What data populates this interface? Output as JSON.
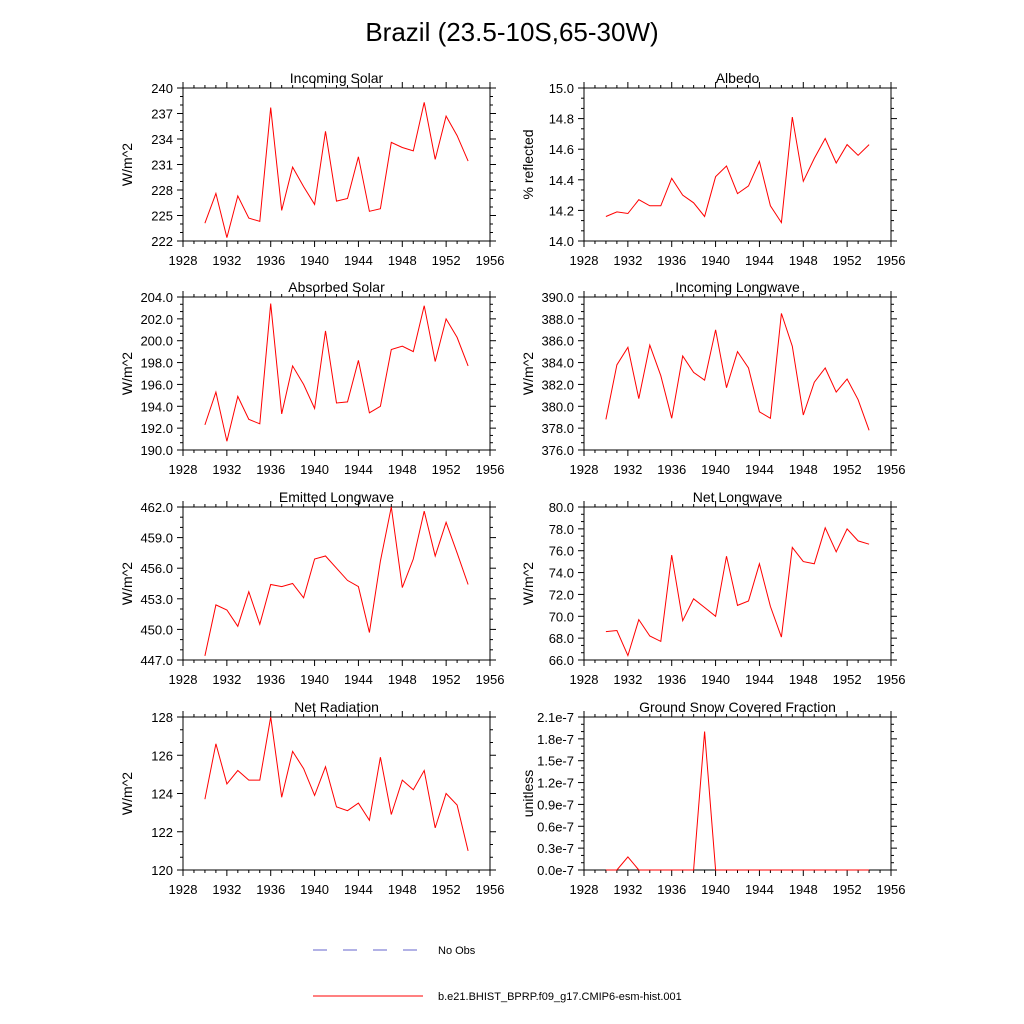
{
  "figure": {
    "title": "Brazil (23.5-10S,65-30W)",
    "legend": [
      {
        "label": "No Obs",
        "color": "#6666cc",
        "dashed": true
      },
      {
        "label": "b.e21.BHIST_BPRP.f09_g17.CMIP6-esm-hist.001",
        "color": "#ff0000",
        "dashed": false
      }
    ]
  },
  "chart_data": [
    {
      "type": "line",
      "title": "Incoming Solar",
      "ylabel": "W/m^2",
      "xlim": [
        1928,
        1956
      ],
      "ylim": [
        222,
        240
      ],
      "xticks": [
        "1928",
        "1932",
        "1936",
        "1940",
        "1944",
        "1948",
        "1952",
        "1956"
      ],
      "yticks": [
        "222",
        "225",
        "228",
        "231",
        "234",
        "237",
        "240"
      ],
      "x": [
        1930,
        1931,
        1932,
        1933,
        1934,
        1935,
        1936,
        1937,
        1938,
        1939,
        1940,
        1941,
        1942,
        1943,
        1944,
        1945,
        1946,
        1947,
        1948,
        1949,
        1950,
        1951,
        1952,
        1953,
        1954
      ],
      "values": [
        224.1,
        227.6,
        222.4,
        227.3,
        224.7,
        224.3,
        237.7,
        225.6,
        230.7,
        228.4,
        226.3,
        234.9,
        226.7,
        227.0,
        231.9,
        225.5,
        225.8,
        233.6,
        233.0,
        232.6,
        238.3,
        231.6,
        236.7,
        234.4,
        231.4
      ],
      "color": "#ff0000"
    },
    {
      "type": "line",
      "title": "Albedo",
      "ylabel": "% reflected",
      "xlim": [
        1928,
        1956
      ],
      "ylim": [
        14.0,
        15.0
      ],
      "xticks": [
        "1928",
        "1932",
        "1936",
        "1940",
        "1944",
        "1948",
        "1952",
        "1956"
      ],
      "yticks": [
        "14.0",
        "14.2",
        "14.4",
        "14.6",
        "14.8",
        "15.0"
      ],
      "x": [
        1930,
        1931,
        1932,
        1933,
        1934,
        1935,
        1936,
        1937,
        1938,
        1939,
        1940,
        1941,
        1942,
        1943,
        1944,
        1945,
        1946,
        1947,
        1948,
        1949,
        1950,
        1951,
        1952,
        1953,
        1954
      ],
      "values": [
        14.16,
        14.19,
        14.18,
        14.27,
        14.23,
        14.23,
        14.41,
        14.3,
        14.25,
        14.16,
        14.42,
        14.49,
        14.31,
        14.36,
        14.52,
        14.23,
        14.12,
        14.81,
        14.39,
        14.54,
        14.67,
        14.51,
        14.63,
        14.56,
        14.63
      ],
      "color": "#ff0000"
    },
    {
      "type": "line",
      "title": "Absorbed Solar",
      "ylabel": "W/m^2",
      "xlim": [
        1928,
        1956
      ],
      "ylim": [
        190.0,
        204.0
      ],
      "xticks": [
        "1928",
        "1932",
        "1936",
        "1940",
        "1944",
        "1948",
        "1952",
        "1956"
      ],
      "yticks": [
        "190.0",
        "192.0",
        "194.0",
        "196.0",
        "198.0",
        "200.0",
        "202.0",
        "204.0"
      ],
      "x": [
        1930,
        1931,
        1932,
        1933,
        1934,
        1935,
        1936,
        1937,
        1938,
        1939,
        1940,
        1941,
        1942,
        1943,
        1944,
        1945,
        1946,
        1947,
        1948,
        1949,
        1950,
        1951,
        1952,
        1953,
        1954
      ],
      "values": [
        192.3,
        195.3,
        190.8,
        194.9,
        192.8,
        192.4,
        203.4,
        193.3,
        197.7,
        196.0,
        193.8,
        200.9,
        194.3,
        194.4,
        198.2,
        193.4,
        194.0,
        199.2,
        199.5,
        199.0,
        203.2,
        198.1,
        202.0,
        200.3,
        197.7
      ],
      "color": "#ff0000"
    },
    {
      "type": "line",
      "title": "Incoming Longwave",
      "ylabel": "W/m^2",
      "xlim": [
        1928,
        1956
      ],
      "ylim": [
        376.0,
        390.0
      ],
      "xticks": [
        "1928",
        "1932",
        "1936",
        "1940",
        "1944",
        "1948",
        "1952",
        "1956"
      ],
      "yticks": [
        "376.0",
        "378.0",
        "380.0",
        "382.0",
        "384.0",
        "386.0",
        "388.0",
        "390.0"
      ],
      "x": [
        1930,
        1931,
        1932,
        1933,
        1934,
        1935,
        1936,
        1937,
        1938,
        1939,
        1940,
        1941,
        1942,
        1943,
        1944,
        1945,
        1946,
        1947,
        1948,
        1949,
        1950,
        1951,
        1952,
        1953,
        1954
      ],
      "values": [
        378.8,
        383.8,
        385.4,
        380.7,
        385.6,
        382.8,
        378.9,
        384.6,
        383.1,
        382.4,
        387.0,
        381.7,
        385.0,
        383.5,
        379.5,
        378.9,
        388.5,
        385.5,
        379.2,
        382.2,
        383.5,
        381.3,
        382.5,
        380.6,
        377.8
      ],
      "color": "#ff0000"
    },
    {
      "type": "line",
      "title": "Emitted Longwave",
      "ylabel": "W/m^2",
      "xlim": [
        1928,
        1956
      ],
      "ylim": [
        447.0,
        462.0
      ],
      "xticks": [
        "1928",
        "1932",
        "1936",
        "1940",
        "1944",
        "1948",
        "1952",
        "1956"
      ],
      "yticks": [
        "447.0",
        "450.0",
        "453.0",
        "456.0",
        "459.0",
        "462.0"
      ],
      "x": [
        1930,
        1931,
        1932,
        1933,
        1934,
        1935,
        1936,
        1937,
        1938,
        1939,
        1940,
        1941,
        1942,
        1943,
        1944,
        1945,
        1946,
        1947,
        1948,
        1949,
        1950,
        1951,
        1952,
        1953,
        1954
      ],
      "values": [
        447.4,
        452.4,
        451.9,
        450.3,
        453.7,
        450.5,
        454.4,
        454.2,
        454.5,
        453.1,
        456.9,
        457.2,
        456.0,
        454.8,
        454.2,
        449.7,
        456.7,
        462.0,
        454.1,
        456.9,
        461.6,
        457.2,
        460.5,
        457.5,
        454.4
      ],
      "color": "#ff0000"
    },
    {
      "type": "line",
      "title": "Net Longwave",
      "ylabel": "W/m^2",
      "xlim": [
        1928,
        1956
      ],
      "ylim": [
        66.0,
        80.0
      ],
      "xticks": [
        "1928",
        "1932",
        "1936",
        "1940",
        "1944",
        "1948",
        "1952",
        "1956"
      ],
      "yticks": [
        "66.0",
        "68.0",
        "70.0",
        "72.0",
        "74.0",
        "76.0",
        "78.0",
        "80.0"
      ],
      "x": [
        1930,
        1931,
        1932,
        1933,
        1934,
        1935,
        1936,
        1937,
        1938,
        1939,
        1940,
        1941,
        1942,
        1943,
        1944,
        1945,
        1946,
        1947,
        1948,
        1949,
        1950,
        1951,
        1952,
        1953,
        1954
      ],
      "values": [
        68.6,
        68.7,
        66.4,
        69.7,
        68.2,
        67.7,
        75.6,
        69.6,
        71.6,
        70.8,
        70.0,
        75.5,
        71.0,
        71.4,
        74.8,
        70.9,
        68.1,
        76.3,
        75.0,
        74.8,
        78.1,
        75.9,
        78.0,
        76.9,
        76.6
      ],
      "color": "#ff0000"
    },
    {
      "type": "line",
      "title": "Net Radiation",
      "ylabel": "W/m^2",
      "xlim": [
        1928,
        1956
      ],
      "ylim": [
        120,
        128
      ],
      "xticks": [
        "1928",
        "1932",
        "1936",
        "1940",
        "1944",
        "1948",
        "1952",
        "1956"
      ],
      "yticks": [
        "120",
        "122",
        "124",
        "126",
        "128"
      ],
      "x": [
        1930,
        1931,
        1932,
        1933,
        1934,
        1935,
        1936,
        1937,
        1938,
        1939,
        1940,
        1941,
        1942,
        1943,
        1944,
        1945,
        1946,
        1947,
        1948,
        1949,
        1950,
        1951,
        1952,
        1953,
        1954
      ],
      "values": [
        123.7,
        126.6,
        124.5,
        125.2,
        124.7,
        124.7,
        128.0,
        123.8,
        126.2,
        125.3,
        123.9,
        125.4,
        123.3,
        123.1,
        123.5,
        122.6,
        125.9,
        122.9,
        124.7,
        124.2,
        125.2,
        122.2,
        124.0,
        123.4,
        121.0
      ],
      "color": "#ff0000"
    },
    {
      "type": "line",
      "title": "Ground Snow Covered Fraction",
      "ylabel": "unitless",
      "xlim": [
        1928,
        1956
      ],
      "ylim": [
        0,
        2.1e-07
      ],
      "xticks": [
        "1928",
        "1932",
        "1936",
        "1940",
        "1944",
        "1948",
        "1952",
        "1956"
      ],
      "yticks": [
        "0.0e-7",
        "0.3e-7",
        "0.6e-7",
        "0.9e-7",
        "1.2e-7",
        "1.5e-7",
        "1.8e-7",
        "2.1e-7"
      ],
      "x": [
        1930,
        1931,
        1932,
        1933,
        1934,
        1935,
        1936,
        1937,
        1938,
        1939,
        1940,
        1941,
        1942,
        1943,
        1944,
        1945,
        1946,
        1947,
        1948,
        1949,
        1950,
        1951,
        1952,
        1953,
        1954
      ],
      "values": [
        0,
        0,
        1.8e-08,
        0,
        0,
        0,
        0,
        0,
        0,
        1.9e-07,
        0,
        0,
        0,
        0,
        0,
        0,
        0,
        0,
        0,
        0,
        0,
        0,
        0,
        0,
        0
      ],
      "color": "#ff0000"
    }
  ]
}
